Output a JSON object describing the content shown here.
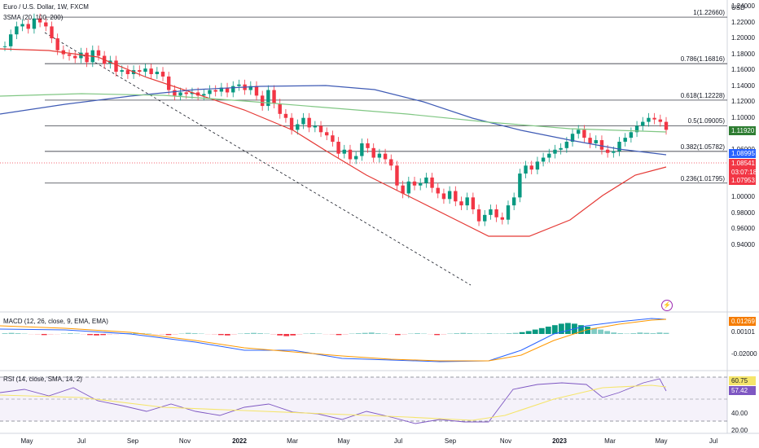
{
  "title": "Euro / U.S. Dollar, 1W, FXCM",
  "indicator_sma": "3SMA (20, 100, 200)",
  "currency": "USD",
  "macd_label": "MACD (12, 26, close, 9, EMA, EMA)",
  "rsi_label": "RSI (14, close, SMA, 14, 2)",
  "price_ticks": [
    "1.24000",
    "1.22000",
    "1.20000",
    "1.18000",
    "1.16000",
    "1.14000",
    "1.12000",
    "1.10000",
    "1.08000",
    "1.06000",
    "1.04000",
    "1.02000",
    "1.00000",
    "0.98000",
    "0.96000",
    "0.94000"
  ],
  "fib_levels": [
    {
      "label": "1(1.22660)",
      "value": 1.2266
    },
    {
      "label": "0.786(1.16816)",
      "value": 1.16816
    },
    {
      "label": "0.618(1.12228)",
      "value": 1.12228
    },
    {
      "label": "0.5(1.09005)",
      "value": 1.09005
    },
    {
      "label": "0.382(1.05782)",
      "value": 1.05782
    },
    {
      "label": "0.236(1.01795)",
      "value": 1.01795
    }
  ],
  "price_badges": [
    {
      "text": "1.11920",
      "color": "#2e7d32"
    },
    {
      "text": "1.08995",
      "color": "#2962ff"
    },
    {
      "text": "1.08541",
      "color": "#f23645"
    },
    {
      "text": "03:07:18",
      "color": "#f23645"
    },
    {
      "text": "1.07953",
      "color": "#f23645"
    }
  ],
  "macd_badges": [
    {
      "text": "0.01269",
      "color": "#f57c00"
    },
    {
      "text": "0.00101",
      "color": "#ffffff"
    }
  ],
  "macd_tick": "-0.02000",
  "rsi_badges": [
    {
      "text": "60.75",
      "color": "#f5e56b"
    },
    {
      "text": "57.42",
      "color": "#7e57c2"
    }
  ],
  "rsi_ticks": [
    "40.00",
    "20.00"
  ],
  "x_labels": [
    "May",
    "Jul",
    "Sep",
    "Nov",
    "2022",
    "Mar",
    "May",
    "Jul",
    "Sep",
    "Nov",
    "2023",
    "Mar",
    "May",
    "Jul"
  ],
  "colors": {
    "up": "#089981",
    "down": "#f23645",
    "sma20": "#e53935",
    "sma100": "#3f5bb5",
    "sma200": "#81c784"
  }
}
